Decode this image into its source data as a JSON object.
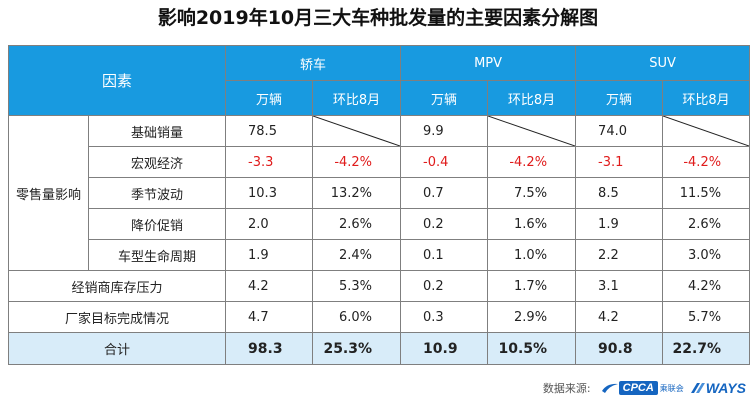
{
  "title": "影响2019年10月三大车种批发量的主要因素分解图",
  "header": {
    "factor": "因素",
    "groups": [
      "轿车",
      "MPV",
      "SUV"
    ],
    "sub": [
      "万辆",
      "环比8月"
    ]
  },
  "chart_data": {
    "type": "table",
    "title": "影响2019年10月三大车种批发量的主要因素分解图",
    "columns": [
      "因素",
      "轿车 万辆",
      "轿车 环比8月",
      "MPV 万辆",
      "MPV 环比8月",
      "SUV 万辆",
      "SUV 环比8月"
    ],
    "group_label": "零售量影响",
    "rows": [
      {
        "label": "基础销量",
        "values": [
          "78.5",
          "",
          "9.9",
          "",
          "74.0",
          ""
        ]
      },
      {
        "label": "宏观经济",
        "values": [
          "-3.3",
          "-4.2%",
          "-0.4",
          "-4.2%",
          "-3.1",
          "-4.2%"
        ]
      },
      {
        "label": "季节波动",
        "values": [
          "10.3",
          "13.2%",
          "0.7",
          "7.5%",
          "8.5",
          "11.5%"
        ]
      },
      {
        "label": "降价促销",
        "values": [
          "2.0",
          "2.6%",
          "0.2",
          "1.6%",
          "1.9",
          "2.6%"
        ]
      },
      {
        "label": "车型生命周期",
        "values": [
          "1.9",
          "2.4%",
          "0.1",
          "1.0%",
          "2.2",
          "3.0%"
        ]
      },
      {
        "label": "经销商库存压力",
        "values": [
          "4.2",
          "5.3%",
          "0.2",
          "1.7%",
          "3.1",
          "4.2%"
        ]
      },
      {
        "label": "厂家目标完成情况",
        "values": [
          "4.7",
          "6.0%",
          "0.3",
          "2.9%",
          "4.2",
          "5.7%"
        ]
      },
      {
        "label": "合计",
        "values": [
          "98.3",
          "25.3%",
          "10.9",
          "10.5%",
          "90.8",
          "22.7%"
        ]
      }
    ],
    "negative_color": "#e01b1b",
    "header_color": "#189ae0",
    "total_row_color": "#d8ecf9"
  },
  "footer": {
    "source_label": "数据来源:",
    "cpca_logo": "CPCA",
    "cpca_sub": "乘联会",
    "ways_logo": "WAYS"
  }
}
